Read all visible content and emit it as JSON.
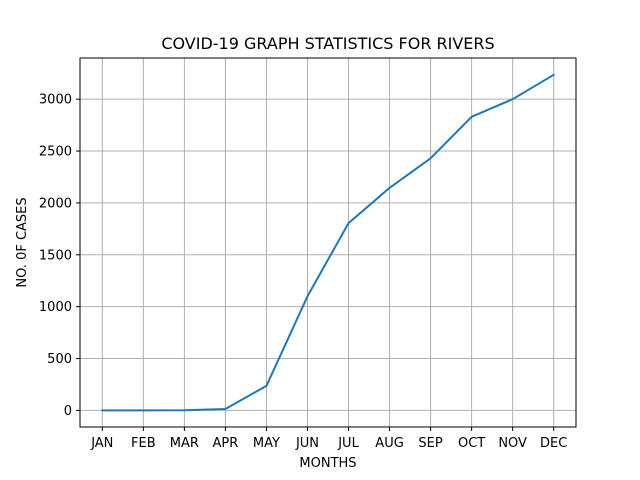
{
  "chart_data": {
    "type": "line",
    "title": "COVID-19 GRAPH STATISTICS FOR RIVERS",
    "xlabel": "MONTHS",
    "ylabel": "NO. 0F CASES",
    "categories": [
      "JAN",
      "FEB",
      "MAR",
      "APR",
      "MAY",
      "JUN",
      "JUL",
      "AUG",
      "SEP",
      "OCT",
      "NOV",
      "DEC"
    ],
    "series": [
      {
        "values": [
          0,
          0,
          2,
          14,
          237,
          1100,
          1805,
          2145,
          2430,
          2830,
          3000,
          3235
        ],
        "color": "#1f77b4"
      }
    ],
    "yticks": [
      0,
      500,
      1000,
      1500,
      2000,
      2500,
      3000
    ],
    "ylim": [
      -160,
      3397
    ],
    "grid": true
  }
}
